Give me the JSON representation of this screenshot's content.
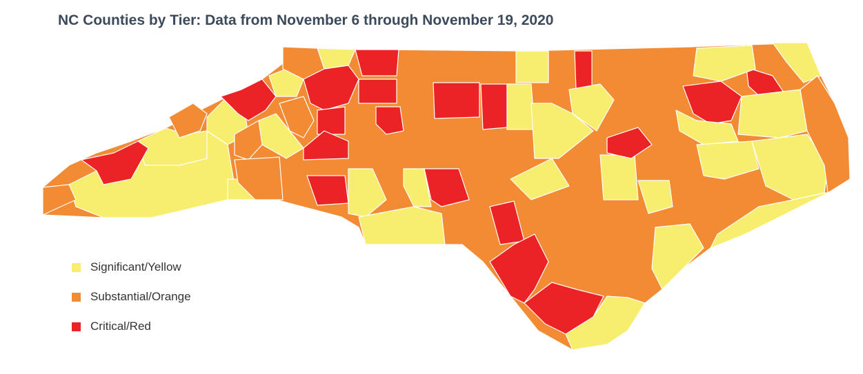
{
  "title": "NC Counties by Tier: Data from November 6 through November 19, 2020",
  "colors": {
    "yellow": "#f7ee6f",
    "orange": "#f28b33",
    "red": "#eb2226"
  },
  "legend": [
    {
      "label": "Significant/Yellow",
      "tier": "yellow"
    },
    {
      "label": "Substantial/Orange",
      "tier": "orange"
    },
    {
      "label": "Critical/Red",
      "tier": "red"
    }
  ]
}
